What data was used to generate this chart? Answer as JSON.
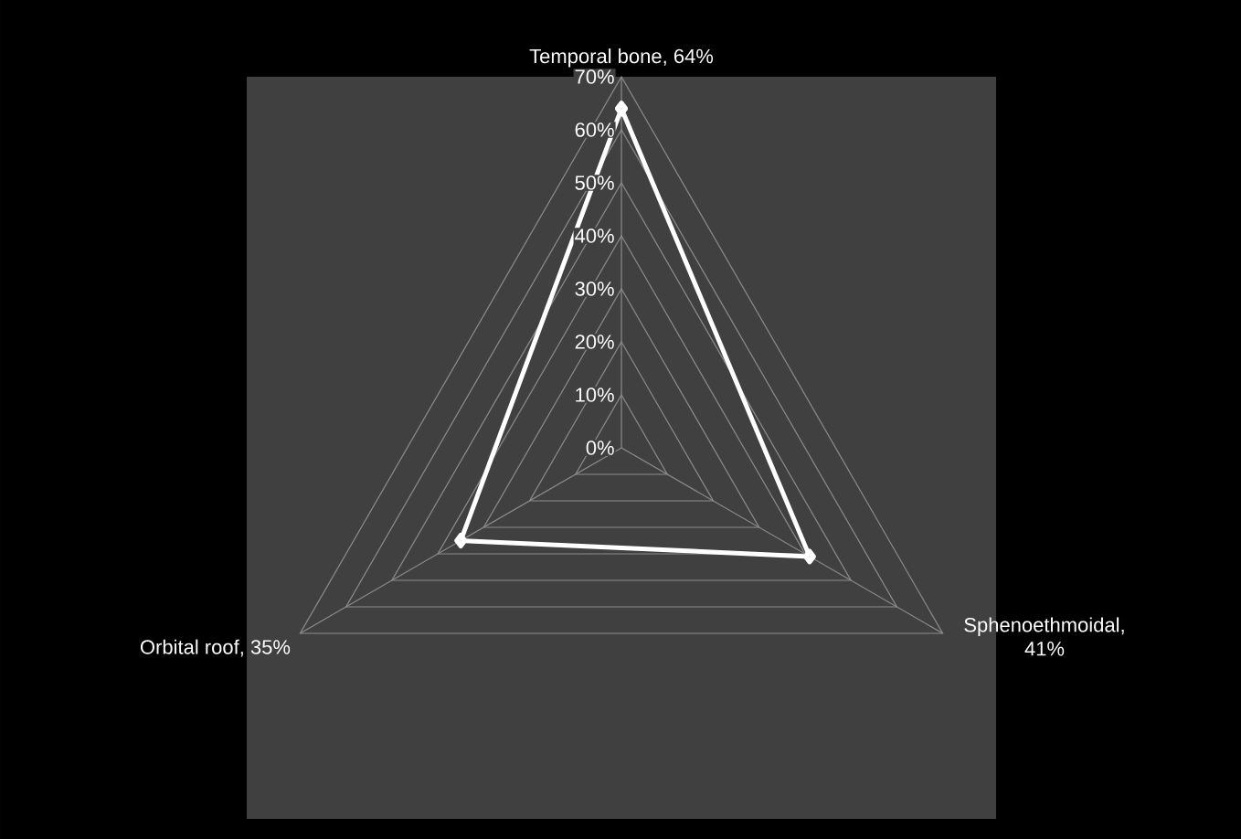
{
  "chart_data": {
    "type": "radar",
    "categories": [
      "Temporal bone, 64%",
      "Sphenoethmoidal, 41%",
      "Orbital roof, 35%"
    ],
    "series": [
      {
        "color": "#ffffff",
        "values": [
          64,
          41,
          35
        ]
      }
    ],
    "ylim": [
      0,
      70
    ],
    "yticks": [
      {
        "value": 0,
        "label": "0%"
      },
      {
        "value": 10,
        "label": "10%"
      },
      {
        "value": 20,
        "label": "20%"
      },
      {
        "value": 30,
        "label": "30%"
      },
      {
        "value": 40,
        "label": "40%"
      },
      {
        "value": 50,
        "label": "50%"
      },
      {
        "value": 60,
        "label": "60%"
      },
      {
        "value": 70,
        "label": "70%"
      }
    ],
    "grid": true,
    "marker": "diamond",
    "line_style": "solid"
  }
}
